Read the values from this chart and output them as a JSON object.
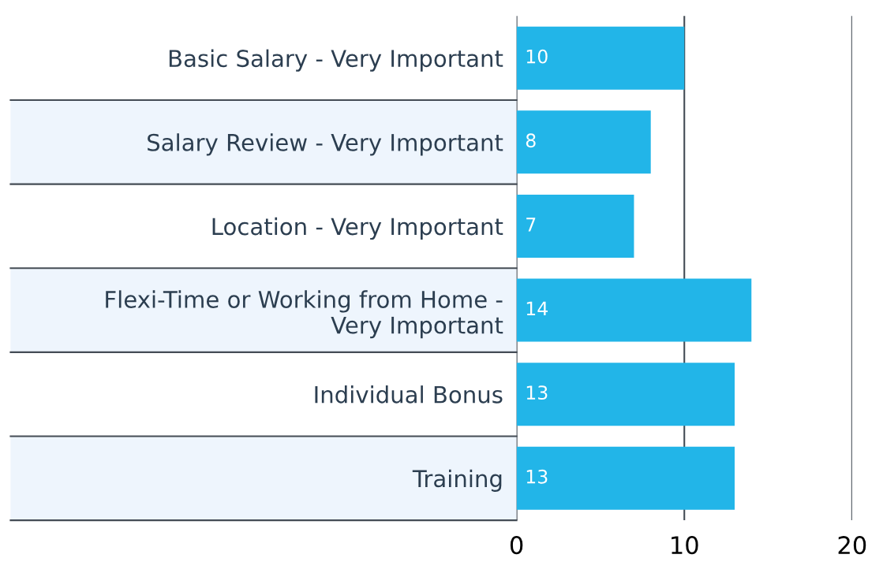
{
  "chart_data": {
    "type": "bar",
    "orientation": "horizontal",
    "categories": [
      "Basic Salary - Very Important",
      "Salary Review - Very Important",
      "Location - Very Important",
      "Flexi-Time or Working from Home -\nVery Important",
      "Individual Bonus",
      "Training"
    ],
    "values": [
      10,
      8,
      7,
      14,
      13,
      13
    ],
    "color": "#22b5e8",
    "xlim": [
      0,
      20
    ],
    "xticks": [
      0,
      10,
      20
    ],
    "grid": "x",
    "data_labels": true
  }
}
